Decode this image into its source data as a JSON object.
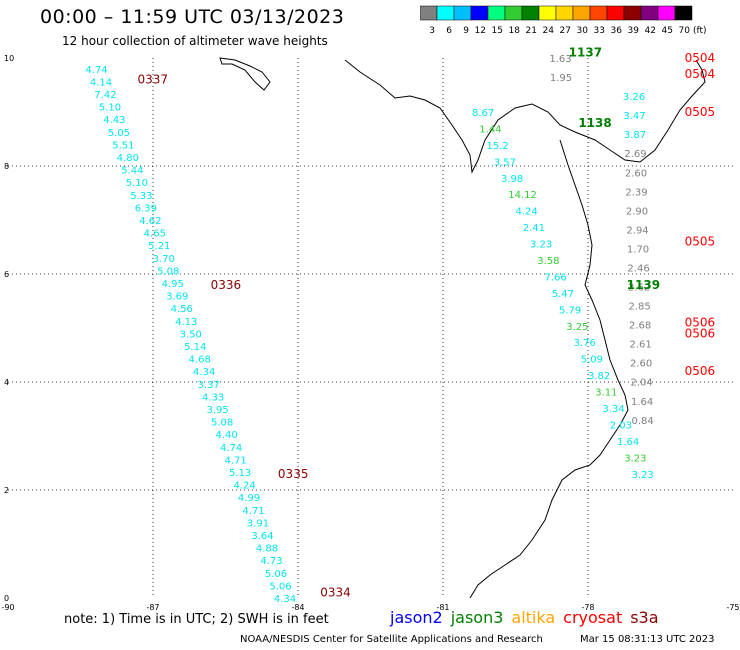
{
  "header": {
    "title": "00:00 – 11:59 UTC 03/13/2023",
    "subtitle": "12 hour collection of altimeter wave heights"
  },
  "scale": {
    "labels": [
      "3",
      "6",
      "9",
      "12",
      "15",
      "18",
      "21",
      "24",
      "27",
      "30",
      "33",
      "36",
      "39",
      "42",
      "45",
      "70"
    ],
    "unit": "(ft)",
    "colors": [
      "#808080",
      "#00ffff",
      "#00bfff",
      "#0000ff",
      "#00ff7f",
      "#32cd32",
      "#008000",
      "#ffff00",
      "#ffd700",
      "#ffa500",
      "#ff4500",
      "#ff0000",
      "#8b0000",
      "#800080",
      "#ff00ff",
      "#000000"
    ]
  },
  "footer": {
    "note": "note:  1) Time is in UTC;  2) SWH is in feet",
    "satellites": [
      {
        "name": "jason2",
        "color": "#0000ff"
      },
      {
        "name": "jason3",
        "color": "#008000"
      },
      {
        "name": "altika",
        "color": "#ffa500"
      },
      {
        "name": "cryosat",
        "color": "#ff0000"
      },
      {
        "name": "s3a",
        "color": "#8b0000"
      }
    ],
    "credit": "NOAA/NESDIS Center for Satellite Applications and Research",
    "generated": "Mar 15 08:31:13 UTC 2023"
  },
  "chart_data": {
    "type": "scatter",
    "xlim": [
      -90,
      -75
    ],
    "ylim": [
      0,
      10
    ],
    "x_ticks": [
      -90,
      -87,
      -84,
      -81,
      -78,
      -75
    ],
    "y_ticks": [
      0,
      2,
      4,
      6,
      8,
      10
    ],
    "grid": true,
    "tracks": [
      {
        "satellite": "s3a",
        "color": "#00e5ee",
        "lon": [
          -85.5,
          -85.2
        ],
        "lat": [
          9.8,
          0
        ],
        "values": [
          "4.74",
          "4.14",
          "7.42",
          "5.10",
          "4.43",
          "5.05",
          "5.51",
          "4.80",
          "5.44",
          "5.10",
          "5.33",
          "6.39",
          "4.62",
          "4.65",
          "5.21",
          "3.70",
          "5.08",
          "4.95",
          "3.69",
          "4.56",
          "4.13",
          "3.50",
          "5.14",
          "4.68",
          "4.34",
          "3.37",
          "4.33",
          "3.95",
          "5.08",
          "4.40",
          "4.74",
          "4.71",
          "5.13",
          "4.24",
          "4.99",
          "4.71",
          "3.91",
          "3.64",
          "4.88",
          "4.73",
          "5.06",
          "5.06",
          "4.34"
        ],
        "times": [
          {
            "label": "0337",
            "lat": 9.6
          },
          {
            "label": "0336",
            "lat": 5.8
          },
          {
            "label": "0335",
            "lat": 2.3
          },
          {
            "label": "0334",
            "lat": 0.1
          }
        ]
      },
      {
        "satellite": "jason3",
        "color": "#00e5ee",
        "values": [
          "8.67",
          "1.44",
          "15.2",
          "3.57",
          "3.98",
          "14.12",
          "4.24",
          "2.41",
          "3.23",
          "3.58",
          "7.66",
          "5.47",
          "5.79",
          "3.25",
          "3.76",
          "5.09",
          "3.82",
          "3.11",
          "3.34",
          "2.03",
          "1.64",
          "3.23",
          "3.23"
        ],
        "times": [
          {
            "label": "1137",
            "lat": 10.1
          },
          {
            "label": "1138",
            "lat": 8.8
          },
          {
            "label": "1139",
            "lat": 5.8
          }
        ]
      },
      {
        "satellite": "cryosat",
        "color": "#808080",
        "values": [
          "1.63",
          "1.95",
          "3.26",
          "3.47",
          "3.87",
          "2.69",
          "2.60",
          "2.39",
          "2.90",
          "2.94",
          "1.70",
          "2.46",
          "2.62",
          "2.85",
          "2.68",
          "2.61",
          "2.60",
          "2.04",
          "1.64",
          "0.84"
        ],
        "times": [
          {
            "label": "0504",
            "lat": 10.0
          },
          {
            "label": "0504",
            "lat": 9.7
          },
          {
            "label": "0505",
            "lat": 9.0
          },
          {
            "label": "0505",
            "lat": 6.6
          },
          {
            "label": "0506",
            "lat": 5.1
          },
          {
            "label": "0506",
            "lat": 4.9
          },
          {
            "label": "0506",
            "lat": 4.2
          }
        ]
      }
    ]
  }
}
